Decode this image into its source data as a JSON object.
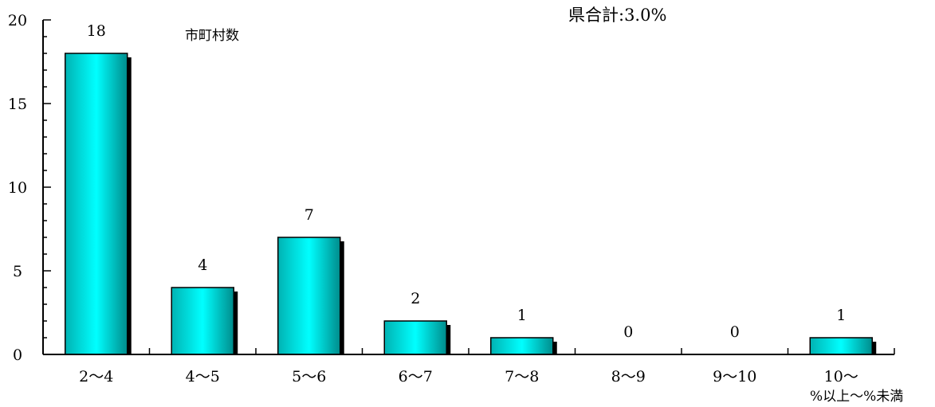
{
  "chart_data": {
    "type": "bar",
    "title": "",
    "xlabel": "%以上〜%未満",
    "ylabel": "",
    "series_label": "市町村数",
    "total_annotation": "県合計:3.0%",
    "categories": [
      "2〜4",
      "4〜5",
      "5〜6",
      "6〜7",
      "7〜8",
      "8〜9",
      "9〜10",
      "10〜"
    ],
    "values": [
      18,
      4,
      7,
      2,
      1,
      0,
      0,
      1
    ],
    "data_labels": [
      "18",
      "4",
      "7",
      "2",
      "1",
      "0",
      "0",
      "1"
    ],
    "ylim": [
      0,
      20
    ],
    "yticks": [
      0,
      5,
      10,
      15,
      20
    ],
    "ytick_labels": [
      "0",
      "5",
      "10",
      "15",
      "20"
    ],
    "grid": false,
    "legend": "none",
    "bar_gradient": [
      "#00b3b3",
      "#00ffff",
      "#008c8c"
    ],
    "bar_shadow": "#000000"
  }
}
